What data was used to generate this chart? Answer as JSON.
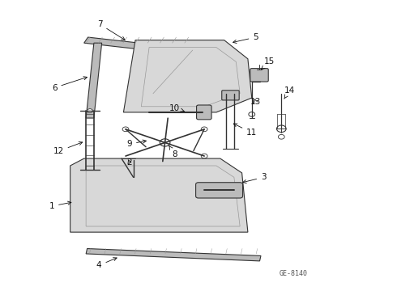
{
  "background_color": "#ffffff",
  "diagram_id": "GE-8140",
  "fig_width": 4.9,
  "fig_height": 3.6,
  "dpi": 100,
  "line_color": "#333333",
  "fill_light": "#d8d8d8",
  "fill_mid": "#bbbbbb",
  "fill_dark": "#999999"
}
